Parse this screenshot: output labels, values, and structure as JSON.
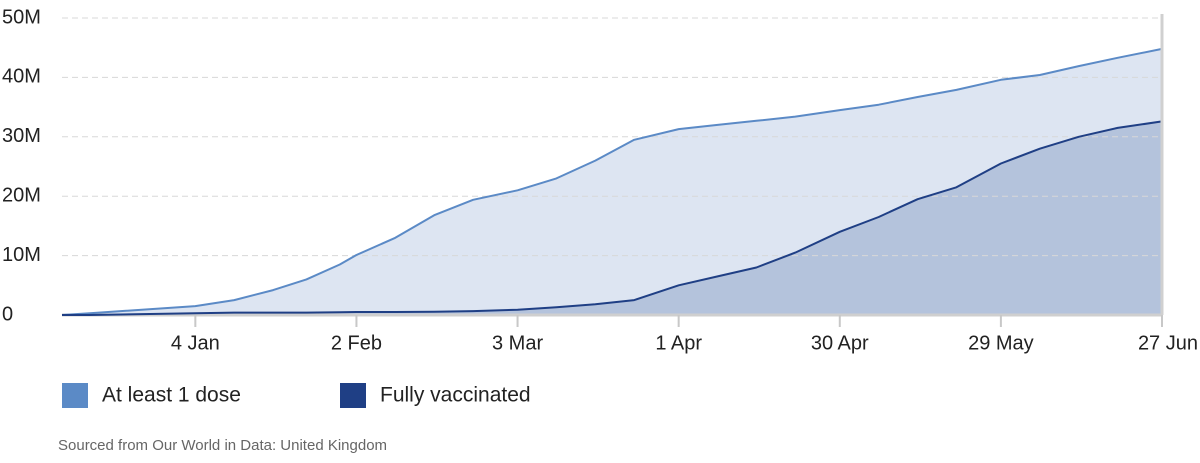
{
  "chart_data": {
    "type": "area",
    "x": [
      "11 Dec",
      "16 Dec",
      "4 Jan",
      "11 Jan",
      "18 Jan",
      "24 Jan",
      "30 Jan",
      "2 Feb",
      "9 Feb",
      "16 Feb",
      "23 Feb",
      "3 Mar",
      "10 Mar",
      "17 Mar",
      "24 Mar",
      "1 Apr",
      "8 Apr",
      "15 Apr",
      "22 Apr",
      "30 Apr",
      "7 May",
      "14 May",
      "21 May",
      "29 May",
      "5 Jun",
      "12 Jun",
      "19 Jun",
      "27 Jun"
    ],
    "series": [
      {
        "name": "At least 1 dose",
        "color": "#5b8ac6",
        "fill": "#dde5f2",
        "values": [
          0,
          0.3,
          1.5,
          2.5,
          4.2,
          6,
          8.5,
          10.1,
          13,
          16.8,
          19.4,
          21,
          23,
          26,
          29.5,
          31.3,
          32,
          32.7,
          33.4,
          34.5,
          35.4,
          36.7,
          37.9,
          39.6,
          40.4,
          41.9,
          43.3,
          44.8
        ]
      },
      {
        "name": "Fully vaccinated",
        "color": "#1f3f85",
        "fill": "#b4c3dc",
        "values": [
          0,
          0,
          0.3,
          0.4,
          0.4,
          0.4,
          0.45,
          0.5,
          0.5,
          0.55,
          0.65,
          0.9,
          1.3,
          1.8,
          2.5,
          5,
          6.5,
          8,
          10.5,
          14,
          16.5,
          19.5,
          21.5,
          25.5,
          28,
          30,
          31.5,
          32.6
        ]
      }
    ],
    "xlim": [
      "11 Dec",
      "27 Jun"
    ],
    "xticks": [
      "4 Jan",
      "2 Feb",
      "3 Mar",
      "1 Apr",
      "30 Apr",
      "29 May",
      "27 Jun"
    ],
    "ylim": [
      0,
      50
    ],
    "yticks": [
      0,
      {
        "value": 10,
        "label": "10M"
      },
      {
        "value": 20,
        "label": "20M"
      },
      {
        "value": 30,
        "label": "30M"
      },
      {
        "value": 40,
        "label": "40M"
      },
      {
        "value": 50,
        "label": "50M"
      }
    ],
    "grid": true,
    "legend": "bottom",
    "source": "Sourced from Our World in Data: United Kingdom"
  }
}
